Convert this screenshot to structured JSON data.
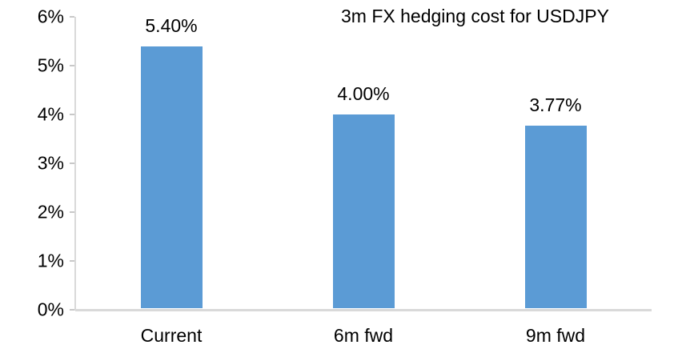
{
  "chart_data": {
    "type": "bar",
    "title": "3m FX hedging cost for USDJPY",
    "categories": [
      "Current",
      "6m fwd",
      "9m fwd"
    ],
    "values": [
      5.4,
      4.0,
      3.77
    ],
    "data_labels": [
      "5.40%",
      "4.00%",
      "3.77%"
    ],
    "y_ticks": [
      "0%",
      "1%",
      "2%",
      "3%",
      "4%",
      "5%",
      "6%"
    ],
    "ylim": [
      0,
      6
    ],
    "y_tick_step": 1,
    "xlabel": "",
    "ylabel": "",
    "grid": false,
    "legend": "none",
    "bar_color": "#5B9BD5",
    "axis_line_color": "#D9D9D9",
    "tick_color": "#C8C8C8",
    "text_color": "#000000",
    "background_color": "#FFFFFF"
  }
}
